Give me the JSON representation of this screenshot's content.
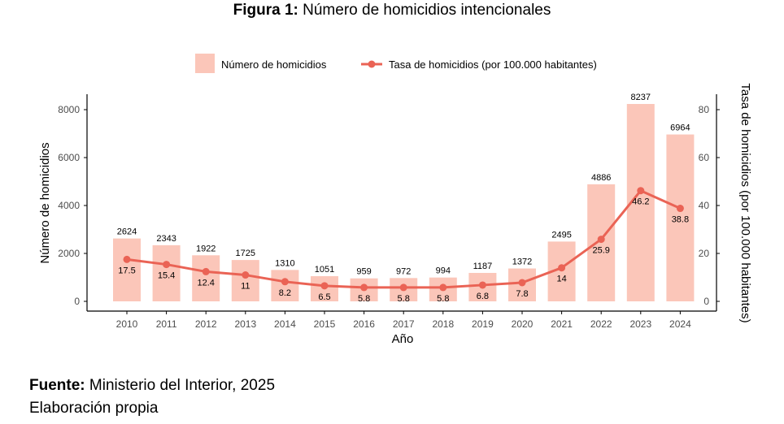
{
  "figure": {
    "label": "Figura 1:",
    "title": "Número de homicidios intencionales"
  },
  "source": {
    "label": "Fuente:",
    "text": "Ministerio del Interior, 2025",
    "note": "Elaboración propia"
  },
  "colors": {
    "bar": "#fbc6b9",
    "line": "#ea6355",
    "axis": "#000000",
    "tick_text": "#4d4d4d"
  },
  "chart_data": {
    "type": "bar",
    "title": "",
    "xlabel": "Año",
    "ylabel": "Número de homicidios",
    "ylabel_right": "Tasa de homicidios (por 100.000 habitantes)",
    "ylim": [
      0,
      8500
    ],
    "ylim_right": [
      0,
      85
    ],
    "yticks": [
      0,
      2000,
      4000,
      6000,
      8000
    ],
    "yticks_right": [
      0,
      20,
      40,
      60,
      80
    ],
    "categories": [
      "2010",
      "2011",
      "2012",
      "2013",
      "2014",
      "2015",
      "2016",
      "2017",
      "2018",
      "2019",
      "2020",
      "2021",
      "2022",
      "2023",
      "2024"
    ],
    "series": [
      {
        "name": "Número de homicidios",
        "type": "bar",
        "axis": "left",
        "values": [
          2624,
          2343,
          1922,
          1725,
          1310,
          1051,
          959,
          972,
          994,
          1187,
          1372,
          2495,
          4886,
          8237,
          6964
        ]
      },
      {
        "name": "Tasa de homicidios (por 100.000 habitantes)",
        "type": "line",
        "axis": "right",
        "values": [
          17.5,
          15.4,
          12.4,
          11,
          8.2,
          6.5,
          5.8,
          5.8,
          5.8,
          6.8,
          7.8,
          14,
          25.9,
          46.2,
          38.8
        ]
      }
    ],
    "legend_position": "top-center",
    "grid": false
  }
}
